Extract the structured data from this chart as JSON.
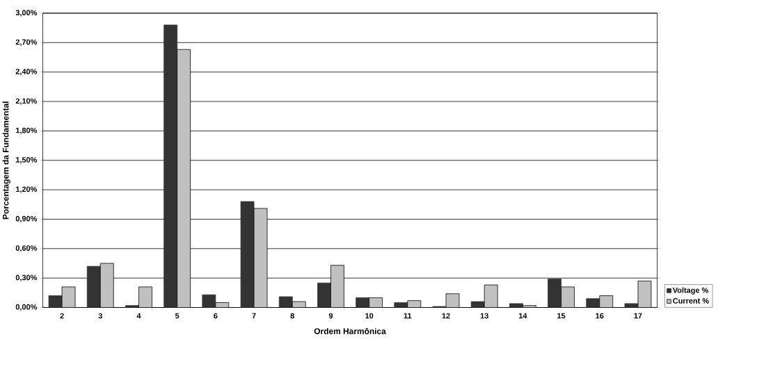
{
  "chart_data": {
    "type": "bar",
    "xlabel": "Ordem Harmônica",
    "ylabel": "Porcentagem da Fundamental",
    "categories": [
      "2",
      "3",
      "4",
      "5",
      "6",
      "7",
      "8",
      "9",
      "10",
      "11",
      "12",
      "13",
      "14",
      "15",
      "16",
      "17"
    ],
    "series": [
      {
        "name": "Voltage %",
        "color": "#333333",
        "values": [
          0.12,
          0.42,
          0.02,
          2.88,
          0.13,
          1.08,
          0.11,
          0.25,
          0.1,
          0.05,
          0.01,
          0.06,
          0.04,
          0.29,
          0.09,
          0.04
        ]
      },
      {
        "name": "Current %",
        "color": "#c0c0c0",
        "values": [
          0.21,
          0.45,
          0.21,
          2.63,
          0.05,
          1.01,
          0.06,
          0.43,
          0.1,
          0.07,
          0.14,
          0.23,
          0.02,
          0.21,
          0.12,
          0.27
        ]
      }
    ],
    "ylim": [
      0,
      3
    ],
    "yticks": [
      {
        "value": 0,
        "label": "0,00%"
      },
      {
        "value": 0.3,
        "label": "0,30%"
      },
      {
        "value": 0.6,
        "label": "0,60%"
      },
      {
        "value": 0.9,
        "label": "0,90%"
      },
      {
        "value": 1.2,
        "label": "1,20%"
      },
      {
        "value": 1.5,
        "label": "1,50%"
      },
      {
        "value": 1.8,
        "label": "1,80%"
      },
      {
        "value": 2.1,
        "label": "2,10%"
      },
      {
        "value": 2.4,
        "label": "2,40%"
      },
      {
        "value": 2.7,
        "label": "2,70%"
      },
      {
        "value": 3.0,
        "label": "3,00%"
      }
    ],
    "grid": "y",
    "legend": "right"
  }
}
